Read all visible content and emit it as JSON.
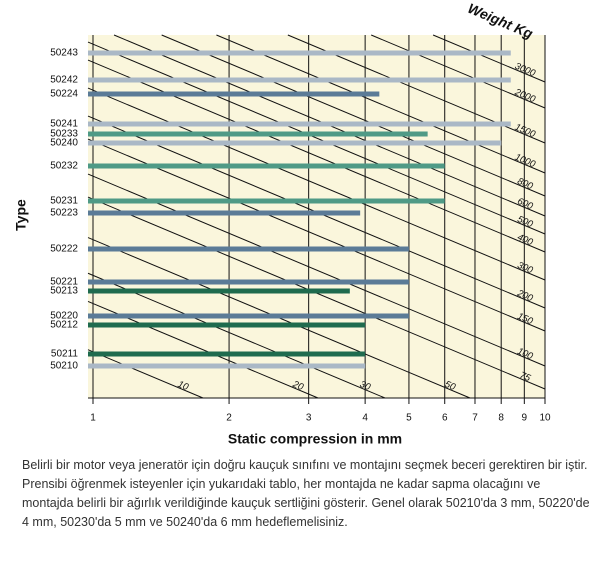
{
  "chart_data": {
    "type": "bar",
    "orientation": "horizontal",
    "x_scale": "log",
    "xlabel": "Static compression in mm",
    "ylabel": "Type",
    "categories": [
      "50243",
      "50242",
      "50224",
      "50241",
      "50233",
      "50240",
      "50232",
      "50231",
      "50223",
      "50222",
      "50221",
      "50213",
      "50220",
      "50212",
      "50211",
      "50210"
    ],
    "values": [
      8.4,
      8.4,
      4.3,
      8.4,
      5.5,
      8.0,
      6,
      6,
      3.9,
      5,
      5,
      3.7,
      5,
      4,
      4,
      4
    ],
    "colors": [
      "#aab8c6",
      "#aab8c6",
      "#5b7b97",
      "#aab8c6",
      "#4f9a86",
      "#aab8c6",
      "#4f9a86",
      "#4f9a86",
      "#5b7b97",
      "#5b7b97",
      "#5b7b97",
      "#1f6b4e",
      "#5b7b97",
      "#1f6b4e",
      "#1f6b4e",
      "#aab8c6"
    ],
    "xlim": [
      1,
      10
    ],
    "xticks": [
      1,
      2,
      3,
      4,
      5,
      6,
      7,
      8,
      9,
      10
    ],
    "weight_lines_title": "Weight Kg",
    "weight_lines": [
      3000,
      2000,
      1500,
      1000,
      800,
      600,
      500,
      400,
      300,
      200,
      150,
      100,
      75,
      50,
      30,
      20,
      10
    ]
  },
  "caption": "Belirli bir motor veya jeneratör için doğru kauçuk sınıfını ve montajını seçmek beceri gerektiren bir iştir. Prensibi öğrenmek isteyenler için yukarıdaki tablo, her montajda ne kadar sapma olacağını ve montajda belirli bir ağırlık verildiğinde kauçuk sertliğini gösterir. Genel olarak 50210'da 3 mm, 50220'de 4 mm, 50230'da 5 mm ve 50240'da 6 mm hedeflemelisiniz."
}
